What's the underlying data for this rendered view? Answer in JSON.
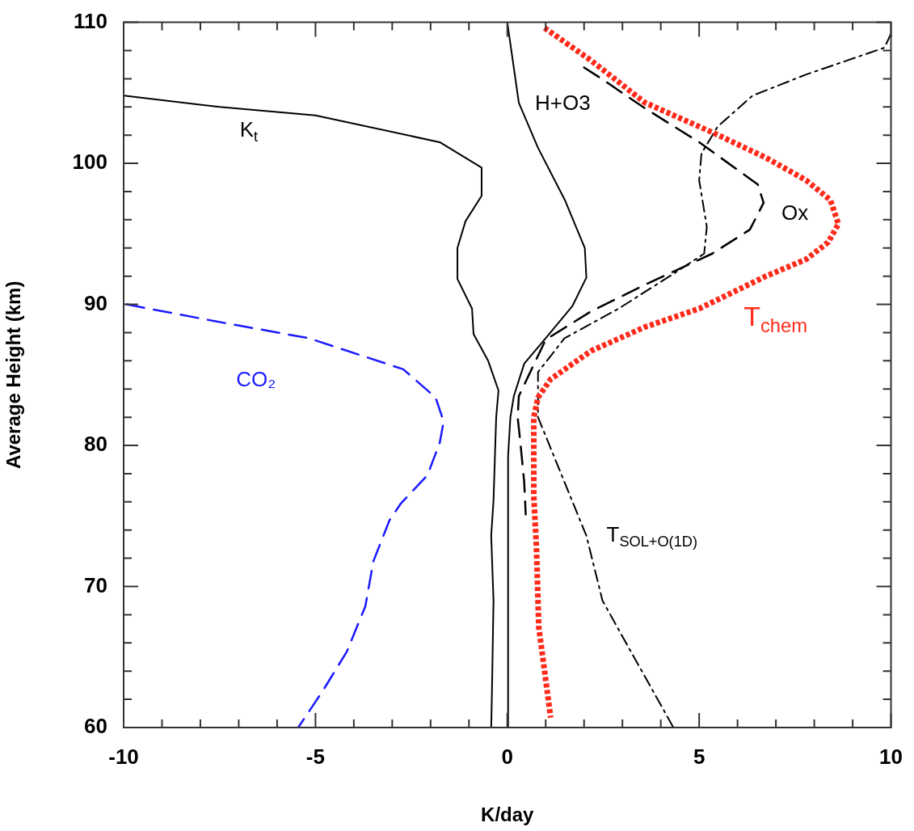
{
  "chart_data": {
    "type": "line",
    "xlabel": "K/day",
    "ylabel": "Average Height (km)",
    "xlim": [
      -10,
      10
    ],
    "ylim": [
      60,
      110
    ],
    "xticks": [
      -10,
      {
        "value": -9,
        "label": null
      },
      {
        "value": -8,
        "label": null
      },
      {
        "value": -7,
        "label": null
      },
      {
        "value": -6,
        "label": null
      },
      -5,
      {
        "value": -4,
        "label": null
      },
      {
        "value": -3,
        "label": null
      },
      {
        "value": -2,
        "label": null
      },
      {
        "value": -1,
        "label": null
      },
      0,
      {
        "value": 1,
        "label": null
      },
      {
        "value": 2,
        "label": null
      },
      {
        "value": 3,
        "label": null
      },
      {
        "value": 4,
        "label": null
      },
      5,
      {
        "value": 6,
        "label": null
      },
      {
        "value": 7,
        "label": null
      },
      {
        "value": 8,
        "label": null
      },
      {
        "value": 9,
        "label": null
      },
      10
    ],
    "yticks": [
      60,
      {
        "value": 62,
        "label": null
      },
      {
        "value": 64,
        "label": null
      },
      {
        "value": 66,
        "label": null
      },
      {
        "value": 68,
        "label": null
      },
      70,
      {
        "value": 72,
        "label": null
      },
      {
        "value": 74,
        "label": null
      },
      {
        "value": 76,
        "label": null
      },
      {
        "value": 78,
        "label": null
      },
      80,
      {
        "value": 82,
        "label": null
      },
      {
        "value": 84,
        "label": null
      },
      {
        "value": 86,
        "label": null
      },
      {
        "value": 88,
        "label": null
      },
      90,
      {
        "value": 92,
        "label": null
      },
      {
        "value": 94,
        "label": null
      },
      {
        "value": 96,
        "label": null
      },
      {
        "value": 98,
        "label": null
      },
      100,
      {
        "value": 102,
        "label": null
      },
      {
        "value": 104,
        "label": null
      },
      {
        "value": 106,
        "label": null
      },
      {
        "value": 108,
        "label": null
      },
      110
    ],
    "grid": false,
    "legend": false,
    "series": [
      {
        "name": "K$_{t}$",
        "color": "#000000",
        "line_style": "solid",
        "x": [
          -10,
          -7.5,
          -5,
          -1.76,
          -0.67,
          -0.67,
          -1.09,
          -1.3,
          -1.3,
          -0.92,
          -0.88,
          -0.5,
          -0.23,
          -0.29,
          -0.36,
          -0.42,
          -0.36,
          -0.4,
          -0.42
        ],
        "values": [
          104.8,
          104,
          103.4,
          101.5,
          99.7,
          97.7,
          95.9,
          94,
          91.8,
          89.7,
          87.9,
          86,
          83.9,
          82,
          76.1,
          73.6,
          69,
          62.6,
          60
        ]
      },
      {
        "name": "H+O3",
        "color": "#000000",
        "line_style": "solid",
        "x": [
          0,
          0.3,
          0.8,
          1.5,
          2.02,
          2.06,
          1.7,
          1,
          0.44,
          0.17,
          0.08,
          0.02,
          0.02
        ],
        "values": [
          110,
          104.3,
          101.1,
          97.4,
          94,
          91.9,
          89.9,
          87.6,
          85.8,
          83.5,
          82,
          79.2,
          60
        ]
      },
      {
        "name": "CO₂",
        "color": "#1a1aff",
        "line_style": "dashed",
        "x": [
          -9.92,
          -7.6,
          -5.17,
          -2.71,
          -1.87,
          -1.66,
          -1.76,
          -2.08,
          -2.77,
          -3.07,
          -3.49,
          -3.7,
          -4.18,
          -4.81,
          -5.45
        ],
        "values": [
          90,
          88.8,
          87.6,
          85.4,
          83.4,
          81.7,
          80.2,
          77.9,
          75.9,
          74.7,
          71.8,
          68.6,
          65.4,
          62.6,
          60
        ]
      },
      {
        "name": "T$_{chem}$",
        "color": "#ff2a1a",
        "line_style": "dotted",
        "x": [
          0.97,
          2.18,
          3.59,
          5.34,
          6.74,
          7.79,
          8.42,
          8.63,
          8.36,
          7.79,
          6.74,
          5,
          3.59,
          2.18,
          1.13,
          0.8,
          0.69,
          0.69,
          0.76,
          0.82,
          1,
          1.13
        ],
        "values": [
          109.6,
          107.3,
          104.3,
          102.2,
          100.4,
          98.8,
          97.4,
          95.7,
          94.4,
          93.2,
          92,
          89.7,
          88.4,
          86.7,
          84.7,
          83.4,
          82,
          76.4,
          72.7,
          67.1,
          63.4,
          60.7
        ]
      },
      {
        "name": "Ox",
        "color": "#000000",
        "line_style": "dashed",
        "x": [
          2,
          2.4,
          3.59,
          5,
          6.53,
          6.68,
          6.32,
          5.34,
          3.59,
          2.18,
          1,
          0.3,
          0.27,
          0.34,
          0.44,
          0.48
        ],
        "values": [
          106.8,
          106.1,
          103.9,
          101.5,
          98.5,
          97.2,
          95.3,
          93.6,
          91.4,
          89.5,
          87.5,
          83.5,
          82,
          80.2,
          77.4,
          75.1
        ]
      },
      {
        "name": "T$_{SOL+O(1D)}$",
        "color": "#000000",
        "line_style": "dashdot",
        "x": [
          10,
          9.83,
          7.79,
          6.39,
          5.48,
          5.06,
          5,
          5.2,
          5.13,
          4.29,
          2.9,
          1.49,
          0.8,
          0.8,
          1.49,
          2.06,
          2.48,
          3.32,
          4.33
        ],
        "values": [
          109.2,
          108.2,
          106.3,
          104.8,
          102.6,
          100.7,
          98.8,
          95.5,
          93.6,
          92.1,
          89.7,
          87.6,
          85.2,
          82,
          77.4,
          73.6,
          69,
          64.9,
          60
        ]
      }
    ]
  }
}
